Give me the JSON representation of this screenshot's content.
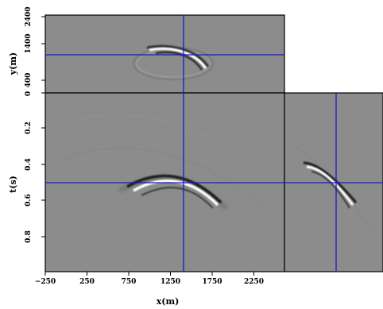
{
  "figure": {
    "xaxis": {
      "label": "x(m)",
      "ticks": [
        "−250",
        "250",
        "750",
        "1250",
        "1750",
        "2250"
      ]
    },
    "tslice_axis": {
      "label": "y(m)",
      "ticks": [
        "2400",
        "1400",
        "400"
      ]
    },
    "time_axis": {
      "label": "t(s)",
      "ticks": [
        "0",
        "0.2",
        "0.4",
        "0.6",
        "0.8"
      ]
    },
    "crosshair": {
      "color": "#1a1acc",
      "x": 1410,
      "y": 1390,
      "t": 0.49
    },
    "panel_background": "#8c8c8c"
  }
}
